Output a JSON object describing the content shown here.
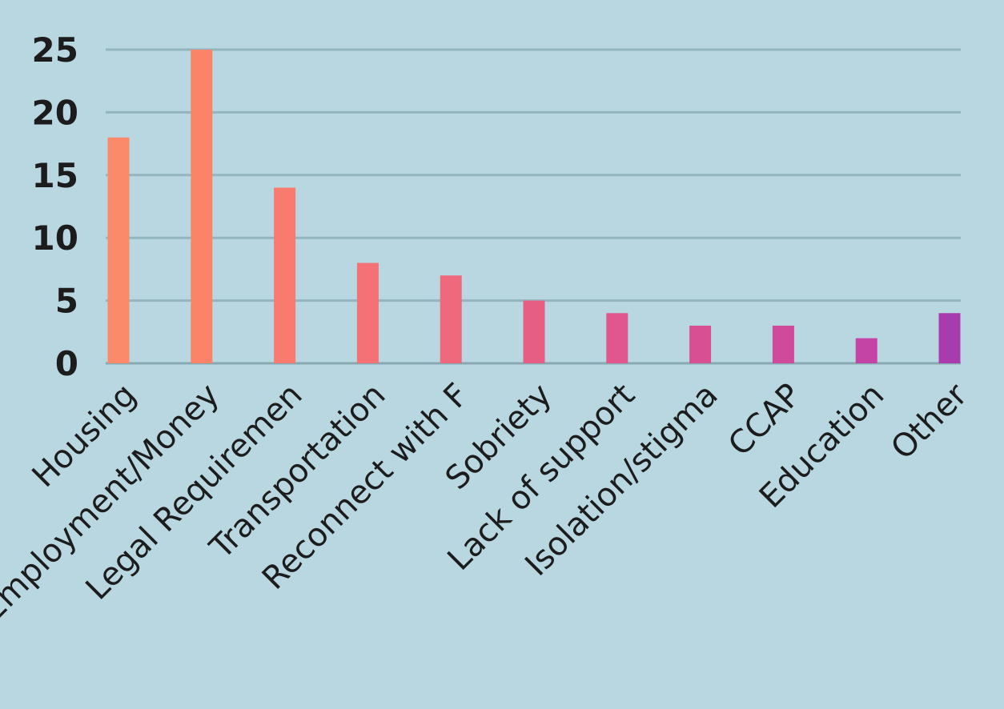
{
  "chart_data": {
    "type": "bar",
    "categories": [
      "Housing",
      "Employment/Money",
      "Legal Requiremen",
      "Transportation",
      "Reconnect with F",
      "Sobriety",
      "Lack of support",
      "Isolation/stigma",
      "CCAP",
      "Education",
      "Other"
    ],
    "values": [
      18,
      25,
      14,
      8,
      7,
      5,
      4,
      3,
      3,
      2,
      4
    ],
    "bar_colors": [
      "#fb8a6a",
      "#fb8468",
      "#f97b70",
      "#f47176",
      "#ef697c",
      "#e75e85",
      "#e0568d",
      "#d94f94",
      "#d04a9c",
      "#c444a6",
      "#a83cac"
    ],
    "yticks": [
      0,
      5,
      10,
      15,
      20,
      25
    ],
    "ylim": [
      0,
      25
    ],
    "title": "",
    "xlabel": "",
    "ylabel": "",
    "grid": true,
    "background": "#b8d7e1"
  }
}
